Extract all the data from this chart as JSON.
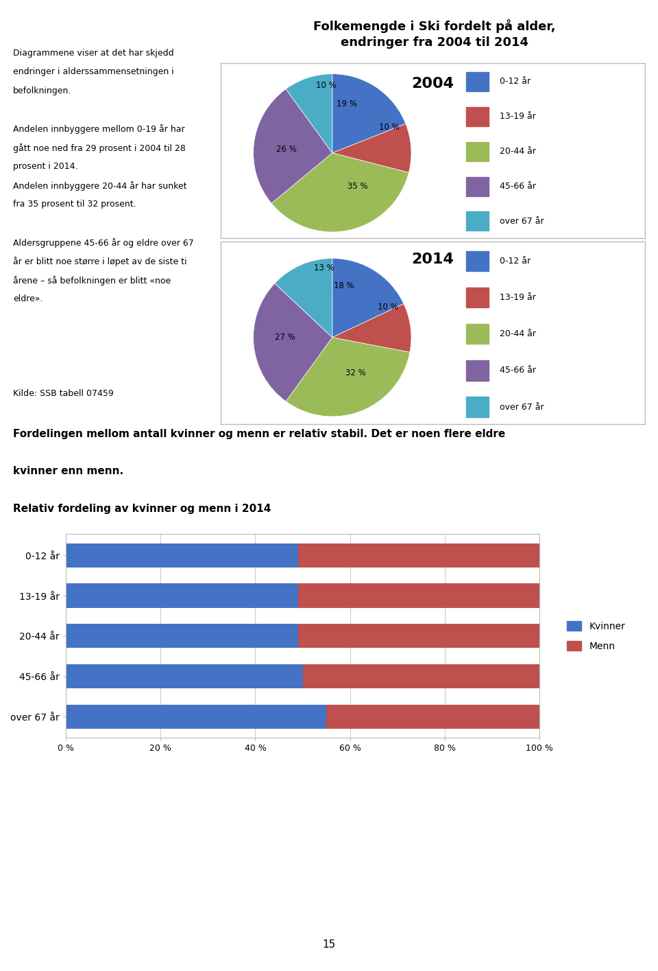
{
  "main_title": "Folkemengde i Ski fordelt på alder,\nendringer fra 2004 til 2014",
  "pie_2004_title": "2004",
  "pie_2014_title": "2014",
  "pie_labels": [
    "0-12 år",
    "13-19 år",
    "20-44 år",
    "45-66 år",
    "over 67 år"
  ],
  "pie_2004_values": [
    19,
    10,
    35,
    26,
    10
  ],
  "pie_2014_values": [
    18,
    10,
    32,
    27,
    13
  ],
  "pie_colors": [
    "#4472C4",
    "#C0504D",
    "#9BBB59",
    "#8064A2",
    "#4BACC6"
  ],
  "pie_2004_labels": [
    "19 %",
    "10 %",
    "35 %",
    "26 %",
    "10 %"
  ],
  "pie_2014_labels": [
    "18 %",
    "10 %",
    "32 %",
    "27 %",
    "13 %"
  ],
  "left_text": [
    [
      "Diagrammene viser at det har skjedd",
      false
    ],
    [
      "endringer i alderssammensetningen i",
      false
    ],
    [
      "befolkningen.",
      false
    ],
    [
      "",
      false
    ],
    [
      "Andelen innbyggere mellom 0-19 år har",
      false
    ],
    [
      "gått noe ned fra 29 prosent i 2004 til 28",
      false
    ],
    [
      "prosent i 2014.",
      false
    ],
    [
      "Andelen innbyggere 20-44 år har sunket",
      false
    ],
    [
      "fra 35 prosent til 32 prosent.",
      false
    ],
    [
      "",
      false
    ],
    [
      "Aldersgruppene 45-66 år og eldre over 67",
      false
    ],
    [
      "år er blitt noe større i løpet av de siste ti",
      false
    ],
    [
      "årene – så befolkningen er blitt «noe",
      false
    ],
    [
      "eldre».",
      false
    ],
    [
      "",
      false
    ],
    [
      "",
      false
    ],
    [
      "",
      false
    ],
    [
      "",
      false
    ],
    [
      "Kilde: SSB tabell 07459",
      false
    ]
  ],
  "bar_categories": [
    "over 67 år",
    "45-66 år",
    "20-44 år",
    "13-19 år",
    "0-12 år"
  ],
  "bar_kvinner": [
    55,
    50,
    49,
    49,
    49
  ],
  "bar_menn": [
    45,
    50,
    51,
    51,
    51
  ],
  "bar_color_kvinner": "#4472C4",
  "bar_color_menn": "#C0504D",
  "bar_title": "Relativ fordeling av kvinner og menn i 2014",
  "bar_bold_line1": "Fordelingen mellom antall kvinner og menn er relativ stabil. Det er noen flere eldre",
  "bar_bold_line2": "kvinner enn menn.",
  "page_number": "15",
  "background_color": "#FFFFFF",
  "box_edge_color": "#BBBBBB",
  "grid_color": "#CCCCCC"
}
